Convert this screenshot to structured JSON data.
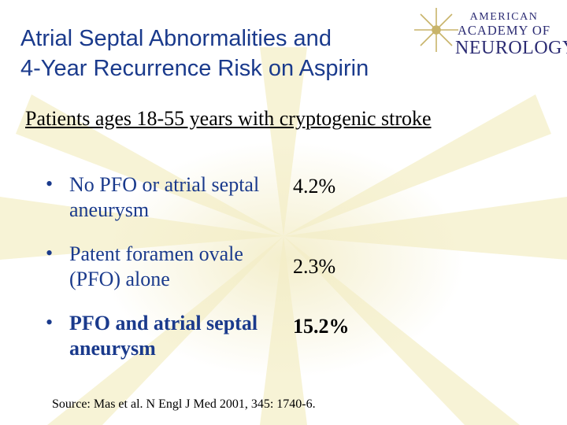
{
  "title": {
    "line1": "Atrial Septal Abnormalities and",
    "line2": "4-Year Recurrence Risk on Aspirin"
  },
  "logo": {
    "line1": "AMERICAN",
    "line2": "ACADEMY OF",
    "line3": "NEUROLOGY"
  },
  "subtitle": "Patients ages 18-55 years with cryptogenic stroke",
  "bullets": [
    {
      "label": "No PFO or atrial septal aneurysm",
      "value": "4.2%"
    },
    {
      "label": "Patent foramen ovale (PFO) alone",
      "value": "2.3%"
    },
    {
      "label": "PFO and atrial septal aneurysm",
      "value": "15.2%"
    }
  ],
  "bullet_symbol": "•",
  "source": "Source: Mas et al. N  Engl J Med  2001, 345: 1740-6.",
  "colors": {
    "title": "#1a3a8c",
    "background_rays": "#f7f3d6",
    "logo_star": "#c8b46a",
    "logo_text": "#2b2b73"
  }
}
